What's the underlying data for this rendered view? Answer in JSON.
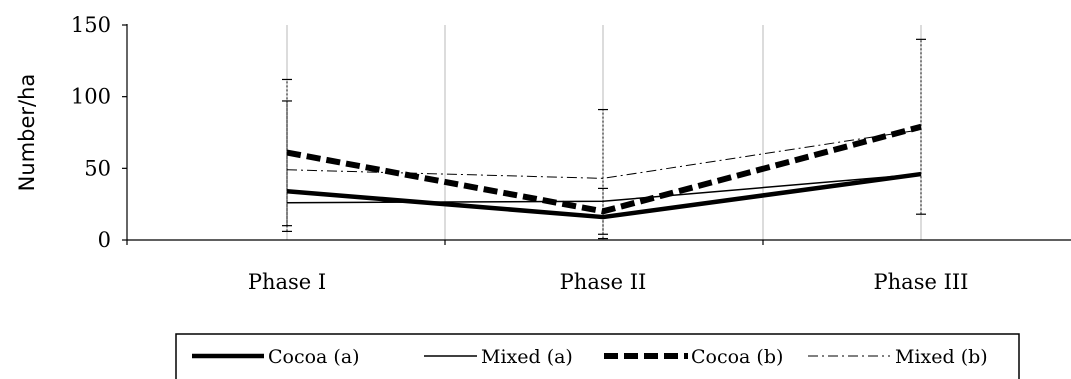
{
  "chart_data": {
    "type": "line",
    "title": "",
    "xlabel": "",
    "ylabel": "Number/ha",
    "ylim": [
      0,
      150
    ],
    "yticks": [
      "0",
      "50",
      "100",
      "150"
    ],
    "grid": "vertical",
    "legend_position": "bottom",
    "categories": [
      "Phase I",
      "Phase II",
      "Phase III"
    ],
    "series": [
      {
        "name": "Cocoa (a)",
        "values": [
          34,
          16,
          46
        ],
        "style": "thick-solid",
        "color": "#000000"
      },
      {
        "name": "Mixed (a)",
        "values": [
          26,
          27,
          46
        ],
        "style": "thin-solid",
        "color": "#000000"
      },
      {
        "name": "Cocoa (b)",
        "values": [
          61,
          20,
          79
        ],
        "style": "thick-dashed",
        "color": "#000000"
      },
      {
        "name": "Mixed (b)",
        "values": [
          49,
          43,
          77
        ],
        "style": "thin-dashdot",
        "color": "#000000"
      }
    ],
    "error_bars": [
      {
        "category": "Phase I",
        "low": 6,
        "high": 112
      },
      {
        "category": "Phase I",
        "low": 10,
        "high": 97
      },
      {
        "category": "Phase II",
        "low": 1,
        "high": 91
      },
      {
        "category": "Phase II",
        "low": 4,
        "high": 36
      },
      {
        "category": "Phase III",
        "low": 18,
        "high": 140
      }
    ]
  }
}
